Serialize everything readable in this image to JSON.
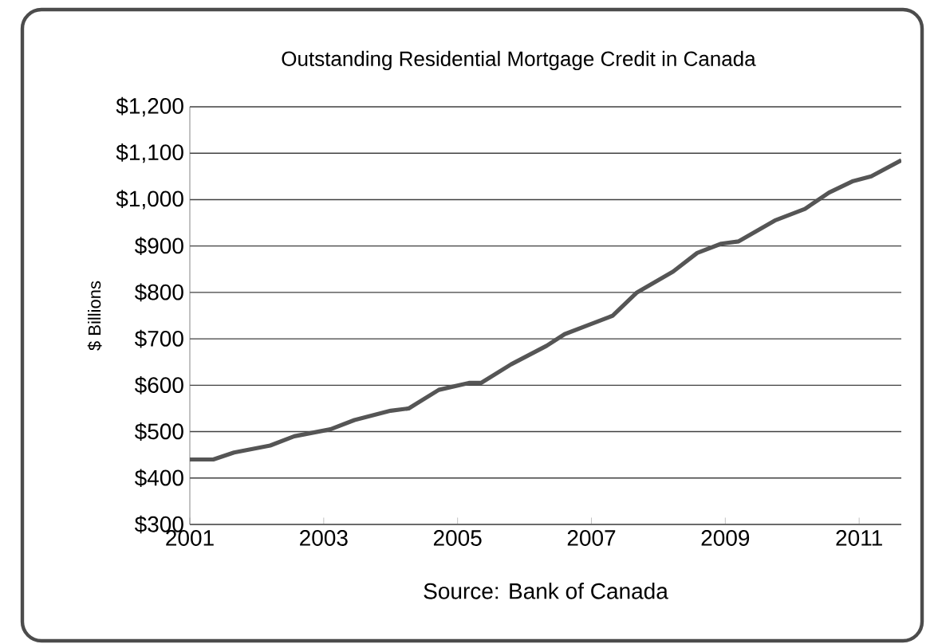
{
  "chart_data": {
    "type": "line",
    "title": "Outstanding Residential Mortgage Credit in Canada",
    "ylabel": "$ Billions",
    "annotations": [
      "Source:  Bank of Canada"
    ],
    "x": [
      2001.0,
      2001.35,
      2001.66,
      2002.2,
      2002.56,
      2003.1,
      2003.46,
      2004.0,
      2004.27,
      2004.72,
      2005.17,
      2005.35,
      2005.8,
      2006.33,
      2006.6,
      2006.96,
      2007.32,
      2007.68,
      2008.22,
      2008.58,
      2008.94,
      2009.2,
      2009.74,
      2010.19,
      2010.55,
      2010.91,
      2011.18,
      2011.63
    ],
    "series": [
      {
        "color": "#555555",
        "values": [
          440,
          440,
          455,
          470,
          490,
          505,
          525,
          545,
          550,
          590,
          605,
          605,
          645,
          685,
          710,
          730,
          750,
          800,
          845,
          885,
          905,
          910,
          955,
          980,
          1015,
          1040,
          1050,
          1085
        ]
      }
    ],
    "xlim": [
      2001,
      2011.63
    ],
    "xticks": [
      2001,
      2003,
      2005,
      2007,
      2009,
      2011
    ],
    "ylim": [
      300,
      1200
    ],
    "yticks": [
      {
        "value": 300,
        "label": "$300"
      },
      {
        "value": 400,
        "label": "$400"
      },
      {
        "value": 500,
        "label": "$500"
      },
      {
        "value": 600,
        "label": "$600"
      },
      {
        "value": 700,
        "label": "$700"
      },
      {
        "value": 800,
        "label": "$800"
      },
      {
        "value": 900,
        "label": "$900"
      },
      {
        "value": 1000,
        "label": "$1,000"
      },
      {
        "value": 1100,
        "label": "$1,100"
      },
      {
        "value": 1200,
        "label": "$1,200"
      }
    ],
    "grid": "y",
    "marker": "none",
    "line_style": "solid"
  }
}
